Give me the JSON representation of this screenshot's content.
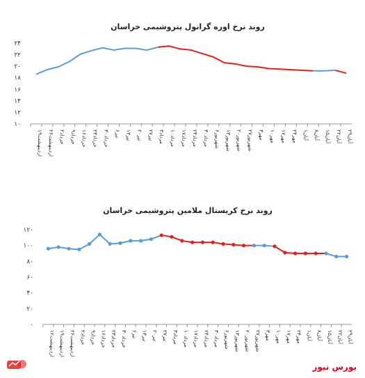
{
  "chart_data": [
    {
      "type": "line",
      "title": "روند نرخ اوره گرانول پتروشیمی خراسان",
      "ylim": [
        10,
        24
      ],
      "yticks": [
        10,
        12,
        14,
        16,
        18,
        20,
        22,
        24
      ],
      "categories": [
        "۱۹اردیبهشت",
        "۲۶اردیبهشت",
        "۲خرداد",
        "۹خرداد",
        "۱۶خرداد",
        "۲۳خرداد",
        "۳۰خرداد",
        "۶تیر",
        "۱۳تیر",
        "۲۰تیر",
        "۲۷تیر",
        "۳مرداد",
        "۱۰مرداد",
        "۱۷مرداد",
        "۲۴مرداد",
        "۳۰مرداد",
        "۶شهریور",
        "۱۳شهریور",
        "۲۰شهریور",
        "۲۷شهریور",
        "۳مهر",
        "۱۰مهر",
        "۱۷مهر",
        "۲۴مهر",
        "۱آبان",
        "۸آبان",
        "۱۵آبان",
        "۲۲آبان",
        "۲۹آبان"
      ],
      "values": [
        18.6,
        19.4,
        19.9,
        20.8,
        22.1,
        22.7,
        23.2,
        22.8,
        23.1,
        23.1,
        22.8,
        23.3,
        23.5,
        23.0,
        22.8,
        22.2,
        21.6,
        20.6,
        20.4,
        20.0,
        19.9,
        19.6,
        19.5,
        19.4,
        19.3,
        19.2,
        19.2,
        19.3,
        18.8
      ],
      "segments": [
        {
          "from": 0,
          "to": 11,
          "color": "#5b9bd5"
        },
        {
          "from": 11,
          "to": 25,
          "color": "#e0201b"
        },
        {
          "from": 25,
          "to": 27,
          "color": "#5b9bd5"
        },
        {
          "from": 27,
          "to": 28,
          "color": "#e0201b"
        }
      ],
      "markers": false
    },
    {
      "type": "line",
      "title": "روند نرخ کریستال ملامین پتروشیمی خراسان",
      "ylim": [
        0,
        120
      ],
      "yticks": [
        0,
        20,
        40,
        60,
        80,
        100,
        120
      ],
      "categories": [
        "۱۲اردیبهشت",
        "۱۹اردیبهشت",
        "۲۶اردیبهشت",
        "۲خرداد",
        "۹خرداد",
        "۱۶خرداد",
        "۲۳خرداد",
        "۳۰خرداد",
        "۶تیر",
        "۱۳تیر",
        "۲۰تیر",
        "۲۷تیر",
        "۳مرداد",
        "۱۰مرداد",
        "۱۷مرداد",
        "۲۴مرداد",
        "۳۰مرداد",
        "۶شهریور",
        "۱۳شهریور",
        "۲۰شهریور",
        "۲۷شهریور",
        "۳مهر",
        "۱۰مهر",
        "۱۷مهر",
        "۲۴مهر",
        "۱آبان",
        "۸آبان",
        "۱۵آبان",
        "۲۲آبان",
        "۲۹آبان"
      ],
      "values": [
        96,
        98,
        96,
        95,
        102,
        114,
        102,
        103,
        106,
        106,
        108,
        113,
        111,
        106,
        104,
        104,
        104,
        102,
        101,
        100,
        100,
        100,
        99,
        91,
        90,
        90,
        90,
        90,
        86,
        86
      ],
      "segments": [
        {
          "from": 0,
          "to": 11,
          "color": "#5b9bd5"
        },
        {
          "from": 11,
          "to": 20,
          "color": "#e0201b"
        },
        {
          "from": 20,
          "to": 22,
          "color": "#5b9bd5"
        },
        {
          "from": 22,
          "to": 27,
          "color": "#e0201b"
        },
        {
          "from": 27,
          "to": 29,
          "color": "#5b9bd5"
        }
      ],
      "markers": true
    }
  ],
  "brand": {
    "name": "بورس نیوز",
    "color": "#d0021b"
  },
  "logo": {
    "icon": "bourse-news-logo-icon"
  }
}
